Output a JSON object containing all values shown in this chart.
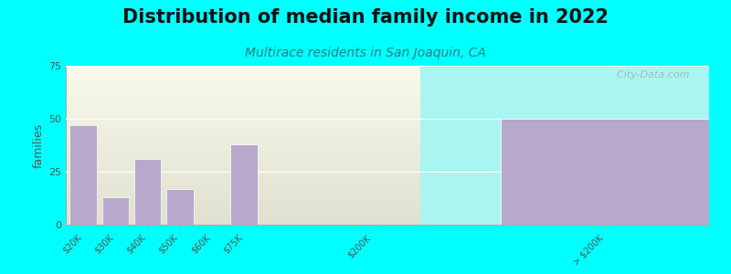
{
  "title": "Distribution of median family income in 2022",
  "subtitle": "Multirace residents in San Joaquin, CA",
  "background_color": "#00FFFF",
  "bar_color": "#b8a8cc",
  "bar_edge_color": "#ffffff",
  "ylabel": "families",
  "ylim": [
    0,
    75
  ],
  "yticks": [
    0,
    25,
    50,
    75
  ],
  "categories": [
    "$20K",
    "$30K",
    "$40K",
    "$50K",
    "$60K",
    "$75K",
    "$200K",
    "> $200K"
  ],
  "values": [
    47,
    13,
    31,
    17,
    0,
    38,
    0,
    50
  ],
  "title_fontsize": 15,
  "subtitle_fontsize": 10,
  "subtitle_color": "#2a8080",
  "watermark": "  City-Data.com",
  "watermark_color": "#aaaaaa",
  "tick_color": "#555555",
  "ylabel_color": "#555555",
  "left_bg_color": "#ddeedd",
  "right_bg_color": "#f5f5f5",
  "x_positions": [
    0,
    1,
    2,
    3,
    4,
    5,
    9,
    17
  ],
  "bar_width": 0.85,
  "x_min": -0.55,
  "x_max": 19.5,
  "left_bg_end": 10.5,
  "right_bar_start": 13.0,
  "right_bar_end": 19.5
}
